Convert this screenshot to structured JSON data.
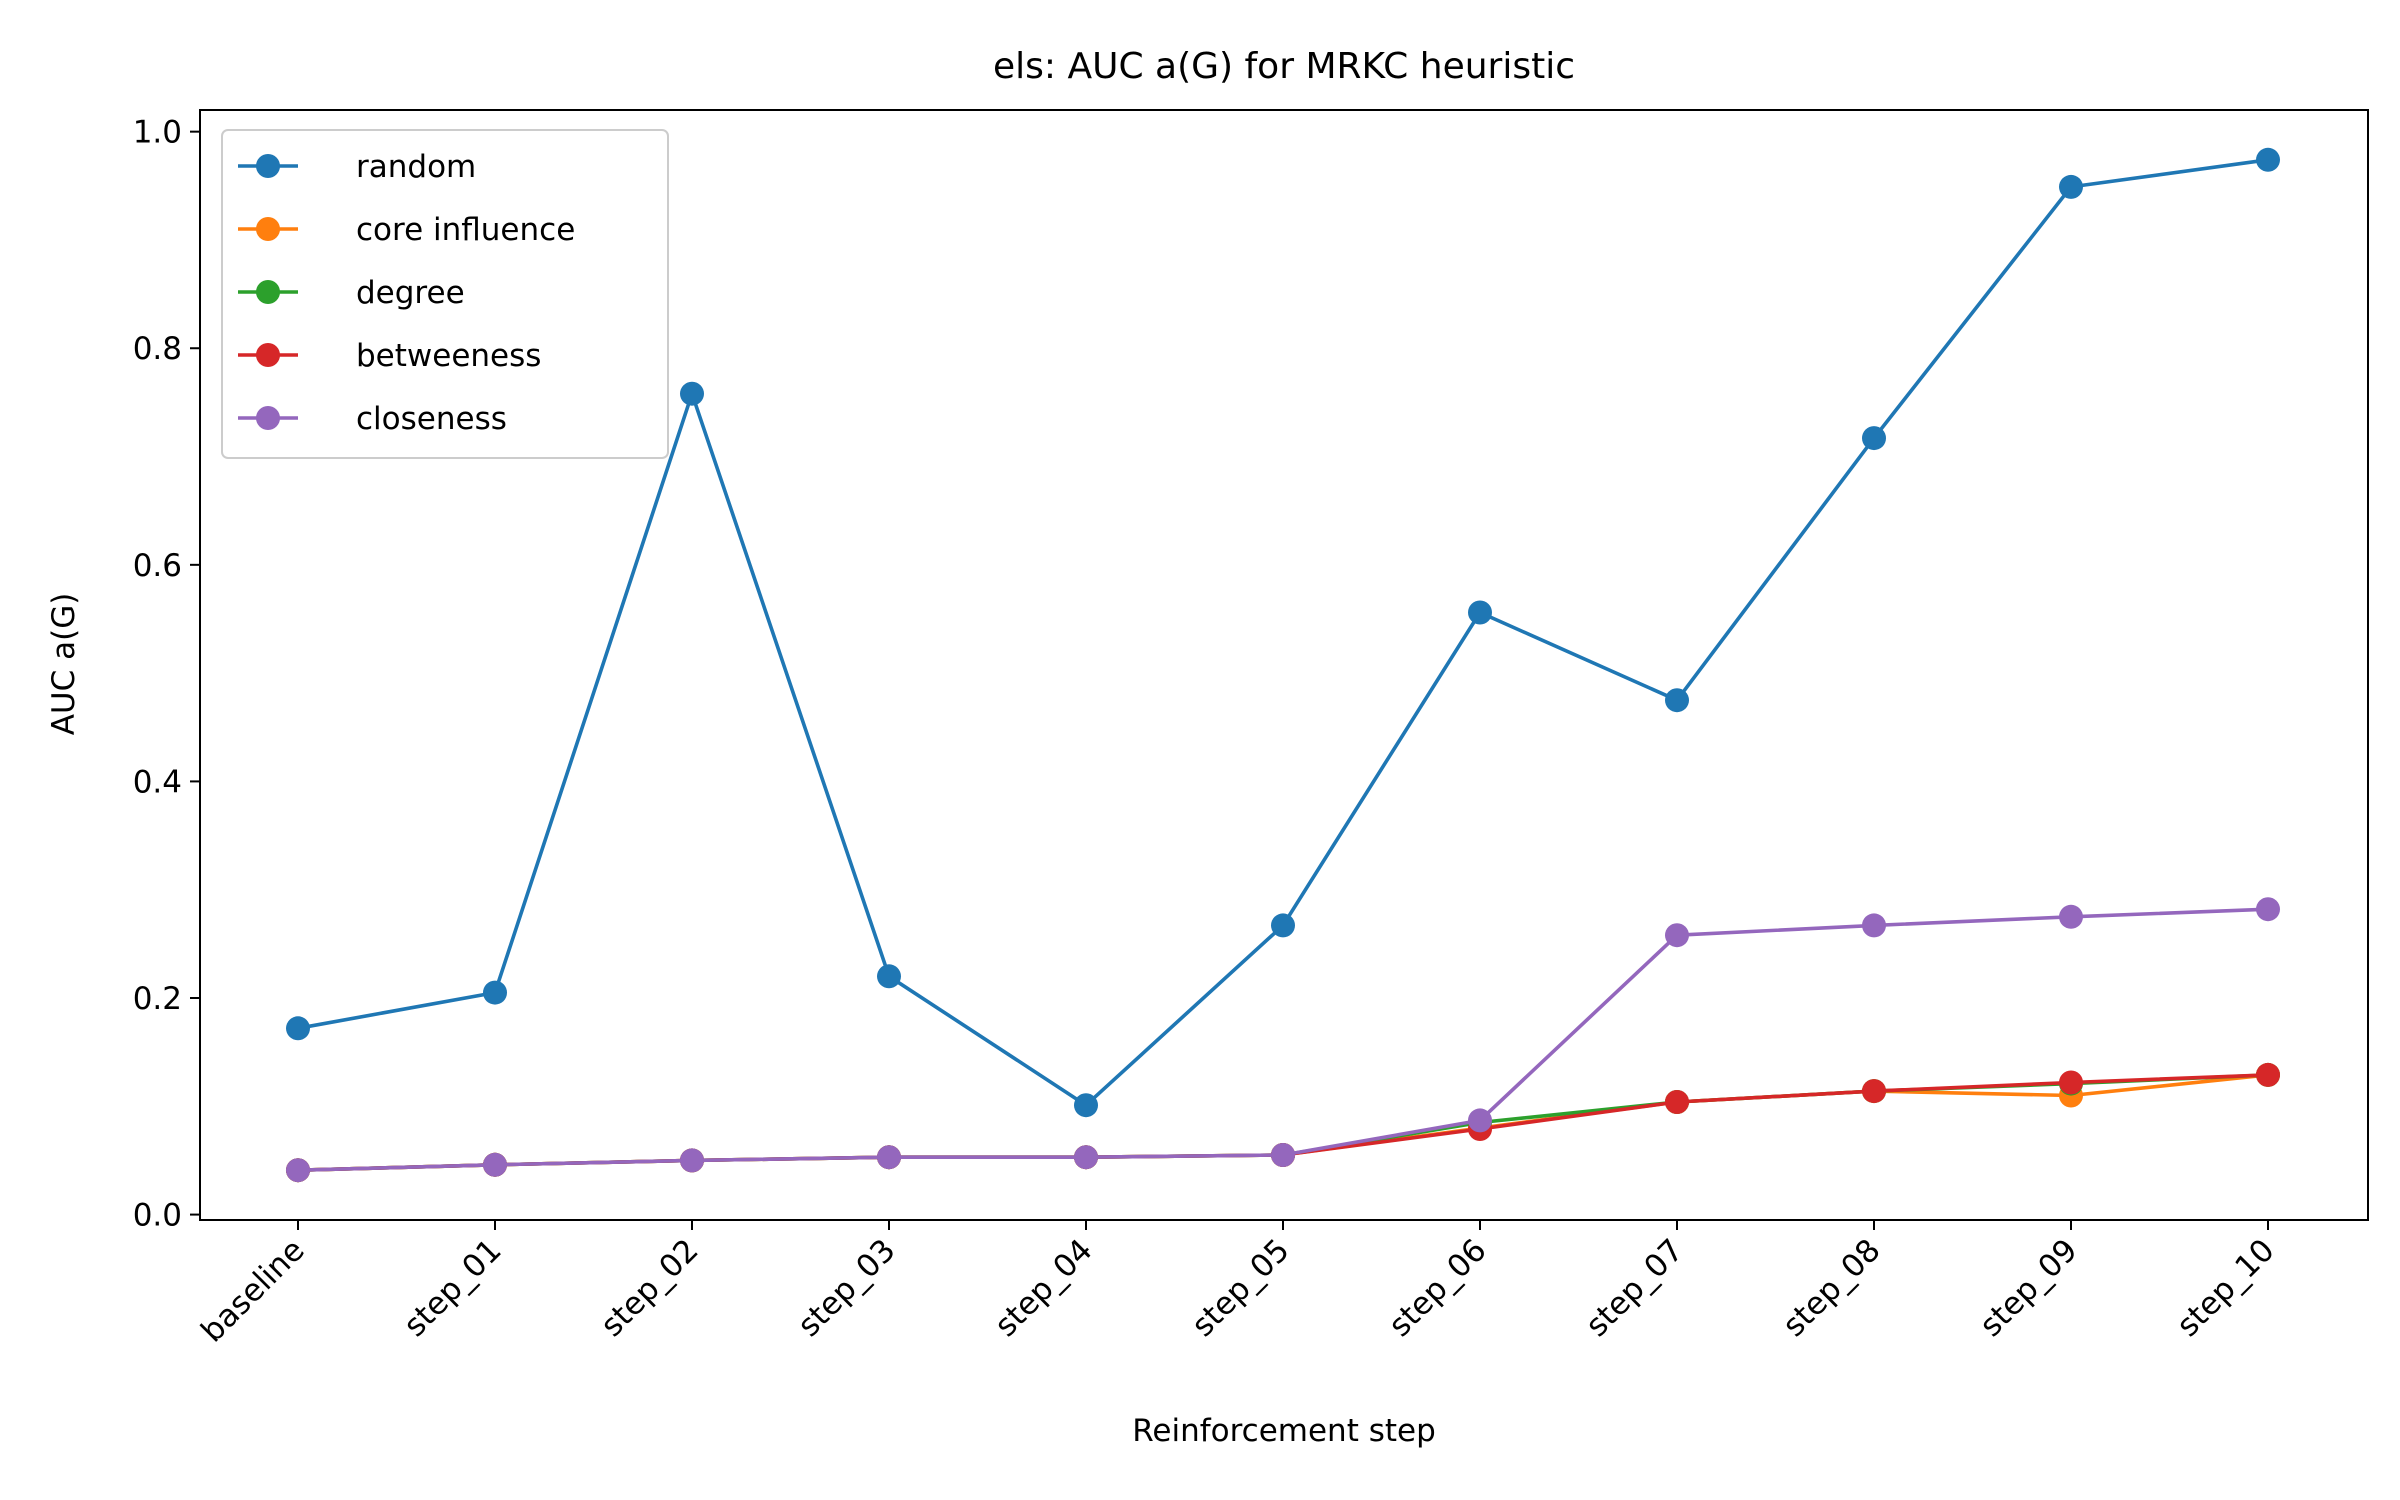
{
  "chart_data": {
    "type": "line",
    "title": "els: AUC a(G) for MRKC heuristic",
    "xlabel": "Reinforcement step",
    "ylabel": "AUC a(G)",
    "categories": [
      "baseline",
      "step_01",
      "step_02",
      "step_03",
      "step_04",
      "step_05",
      "step_06",
      "step_07",
      "step_08",
      "step_09",
      "step_10"
    ],
    "ylim": [
      -0.005,
      1.02
    ],
    "yticks": [
      "0.0",
      "0.2",
      "0.4",
      "0.6",
      "0.8",
      "1.0"
    ],
    "grid": false,
    "legend_position": "top-left",
    "series": [
      {
        "name": "random",
        "color": "#1f77b4",
        "values": [
          0.172,
          0.205,
          0.758,
          0.22,
          0.101,
          0.267,
          0.556,
          0.475,
          0.717,
          0.949,
          0.974
        ]
      },
      {
        "name": "core influence",
        "color": "#ff7f0e",
        "values": [
          0.041,
          0.046,
          0.05,
          0.053,
          0.053,
          0.055,
          0.08,
          0.104,
          0.114,
          0.11,
          0.129
        ]
      },
      {
        "name": "degree",
        "color": "#2ca02c",
        "values": [
          0.041,
          0.046,
          0.05,
          0.053,
          0.053,
          0.055,
          0.085,
          0.104,
          0.114,
          0.121,
          0.129
        ]
      },
      {
        "name": "betweeness",
        "color": "#d62728",
        "values": [
          0.041,
          0.046,
          0.05,
          0.053,
          0.053,
          0.055,
          0.079,
          0.104,
          0.114,
          0.122,
          0.129
        ]
      },
      {
        "name": "closeness",
        "color": "#9467bd",
        "values": [
          0.041,
          0.046,
          0.05,
          0.053,
          0.053,
          0.055,
          0.087,
          0.258,
          0.267,
          0.275,
          0.282
        ]
      }
    ]
  }
}
